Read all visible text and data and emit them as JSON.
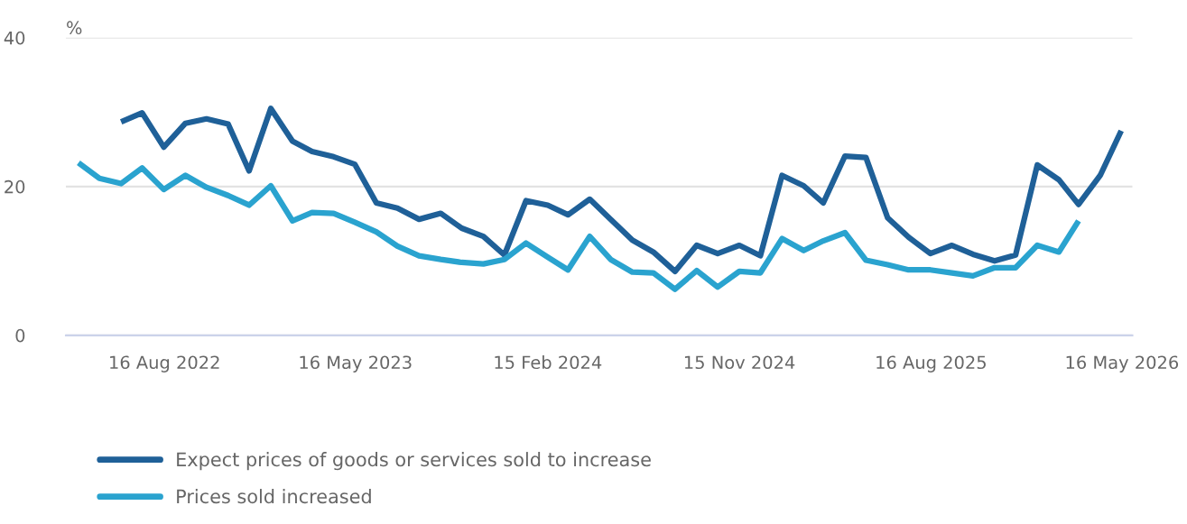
{
  "chart_data": {
    "type": "line",
    "ylabel": "%",
    "x": [
      "2022-04-15",
      "2022-05-15",
      "2022-06-15",
      "2022-07-15",
      "2022-08-15",
      "2022-09-15",
      "2022-10-15",
      "2022-11-15",
      "2022-12-15",
      "2023-01-15",
      "2023-02-15",
      "2023-03-15",
      "2023-04-15",
      "2023-05-15",
      "2023-06-15",
      "2023-07-15",
      "2023-08-15",
      "2023-09-15",
      "2023-10-15",
      "2023-11-15",
      "2023-12-15",
      "2024-01-15",
      "2024-02-15",
      "2024-03-15",
      "2024-04-15",
      "2024-05-15",
      "2024-06-15",
      "2024-07-15",
      "2024-08-15",
      "2024-09-15",
      "2024-10-15",
      "2024-11-15",
      "2024-12-15",
      "2025-01-15",
      "2025-02-15",
      "2025-03-15",
      "2025-04-15",
      "2025-05-15",
      "2025-06-15",
      "2025-07-15",
      "2025-08-15",
      "2025-09-15",
      "2025-10-15",
      "2025-11-15",
      "2025-12-15",
      "2026-01-15",
      "2026-02-15",
      "2026-03-15",
      "2026-04-15",
      "2026-05-15"
    ],
    "series": [
      {
        "name": "Expect prices of goods or services sold to increase",
        "color": "#1f6098",
        "values": [
          null,
          null,
          28.7,
          29.9,
          25.3,
          28.5,
          29.1,
          28.4,
          22.1,
          30.5,
          26.1,
          24.7,
          24.0,
          23.0,
          17.8,
          17.1,
          15.6,
          16.4,
          14.4,
          13.3,
          10.8,
          18.1,
          17.5,
          16.2,
          18.3,
          15.6,
          12.8,
          11.2,
          8.6,
          12.1,
          11.0,
          12.1,
          10.7,
          21.5,
          20.1,
          17.8,
          24.1,
          23.9,
          15.8,
          13.2,
          11.0,
          12.1,
          10.9,
          10.0,
          10.8,
          22.9,
          20.9,
          17.6,
          21.5,
          27.5
        ]
      },
      {
        "name": "Prices sold increased",
        "color": "#2aa3cf",
        "values": [
          23.2,
          21.1,
          20.4,
          22.5,
          19.6,
          21.5,
          19.9,
          18.8,
          17.5,
          20.1,
          15.4,
          16.5,
          16.4,
          15.2,
          13.9,
          12.0,
          10.7,
          10.2,
          9.8,
          9.6,
          10.2,
          12.4,
          10.5,
          8.8,
          13.3,
          10.2,
          8.5,
          8.4,
          6.2,
          8.7,
          6.5,
          8.6,
          8.4,
          13.0,
          11.4,
          12.7,
          13.8,
          10.1,
          9.5,
          8.8,
          8.8,
          8.4,
          8.0,
          9.1,
          9.1,
          12.1,
          11.2,
          15.4,
          null,
          null
        ]
      }
    ],
    "xlim": [
      "2022-03-28",
      "2026-05-31"
    ],
    "xticks": [
      {
        "value": "2022-08-16",
        "label": "16 Aug 2022"
      },
      {
        "value": "2023-05-16",
        "label": "16 May 2023"
      },
      {
        "value": "2024-02-15",
        "label": "15 Feb 2024"
      },
      {
        "value": "2024-11-15",
        "label": "15 Nov 2024"
      },
      {
        "value": "2025-08-16",
        "label": "16 Aug 2025"
      },
      {
        "value": "2026-05-16",
        "label": "16 May 2026"
      }
    ],
    "ylim": [
      0,
      40
    ],
    "yticks": [
      0,
      20,
      40
    ],
    "grid": "y",
    "legend": "bottom",
    "line_style": "solid",
    "marker": "none"
  }
}
